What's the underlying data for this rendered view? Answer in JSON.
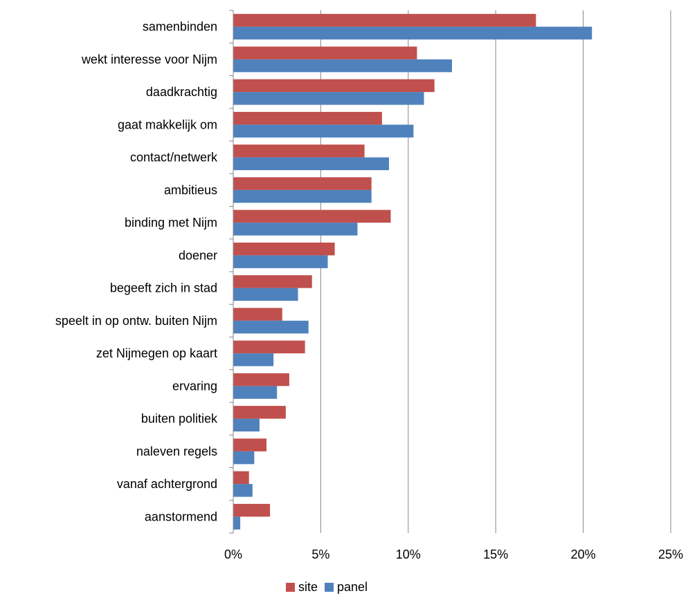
{
  "chart_data": {
    "type": "bar",
    "orientation": "horizontal",
    "categories": [
      "samenbinden",
      "wekt interesse voor Nijm",
      "daadkrachtig",
      "gaat makkelijk om",
      "contact/netwerk",
      "ambitieus",
      "binding met Nijm",
      "doener",
      "begeeft zich in stad",
      "speelt in op ontw. buiten Nijm",
      "zet Nijmegen op kaart",
      "ervaring",
      "buiten politiek",
      "naleven regels",
      "vanaf achtergrond",
      "aanstormend"
    ],
    "series": [
      {
        "name": "site",
        "color": "#c0504d",
        "values": [
          17.3,
          10.5,
          11.5,
          8.5,
          7.5,
          7.9,
          9.0,
          5.8,
          4.5,
          2.8,
          4.1,
          3.2,
          3.0,
          1.9,
          0.9,
          2.1
        ]
      },
      {
        "name": "panel",
        "color": "#4f81bd",
        "values": [
          20.5,
          12.5,
          10.9,
          10.3,
          8.9,
          7.9,
          7.1,
          5.4,
          3.7,
          4.3,
          2.3,
          2.5,
          1.5,
          1.2,
          1.1,
          0.4
        ]
      }
    ],
    "xlim": [
      0,
      25
    ],
    "xticks": [
      "0%",
      "5%",
      "10%",
      "15%",
      "20%",
      "25%"
    ],
    "grid": true,
    "legend": "bottom"
  }
}
